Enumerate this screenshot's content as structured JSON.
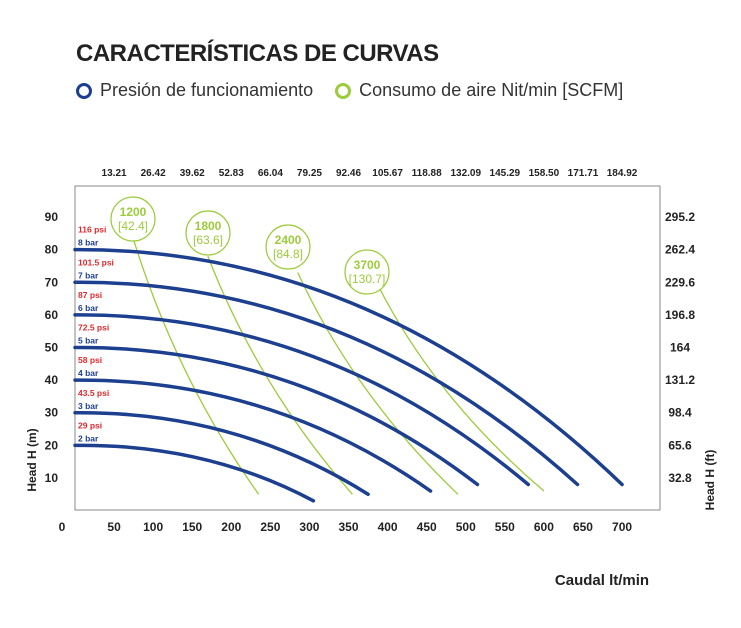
{
  "chart_data": {
    "type": "line",
    "title": "CARACTERÍSTICAS DE CURVAS",
    "legend": [
      {
        "label": "Presión de funcionamiento",
        "color": "#1d3f8f"
      },
      {
        "label": "Consumo de aire Nit/min [SCFM]",
        "color": "#9ccb3b"
      }
    ],
    "xlabel": "Caudal lt/min",
    "ylabel_left": "Head H (m)",
    "ylabel_right": "Head H (ft)",
    "xlim": [
      0,
      750
    ],
    "ylim": [
      0,
      95
    ],
    "x_ticks": [
      0,
      50,
      100,
      150,
      200,
      250,
      300,
      350,
      400,
      450,
      500,
      550,
      600,
      650,
      700
    ],
    "x_top_ticks": [
      "13.21",
      "26.42",
      "39.62",
      "52.83",
      "66.04",
      "79.25",
      "92.46",
      "105.67",
      "118.88",
      "132.09",
      "145.29",
      "158.50",
      "171.71",
      "184.92"
    ],
    "y_ticks": [
      10,
      20,
      30,
      40,
      50,
      60,
      70,
      80,
      90
    ],
    "y_right_ticks": [
      "32.8",
      "65.6",
      "98.4",
      "131.2",
      "164",
      "196.8",
      "229.6",
      "262.4",
      "295.2"
    ],
    "pressure_series": [
      {
        "bar": "8 bar",
        "psi": "116 psi",
        "start": 80,
        "end_x": 700,
        "end_y": 8
      },
      {
        "bar": "7 bar",
        "psi": "101.5 psi",
        "start": 70,
        "end_x": 643,
        "end_y": 8
      },
      {
        "bar": "6 bar",
        "psi": "87 psi",
        "start": 60,
        "end_x": 580,
        "end_y": 8
      },
      {
        "bar": "5 bar",
        "psi": "72.5 psi",
        "start": 50,
        "end_x": 515,
        "end_y": 8
      },
      {
        "bar": "4 bar",
        "psi": "58 psi",
        "start": 40,
        "end_x": 455,
        "end_y": 6
      },
      {
        "bar": "3 bar",
        "psi": "43.5 psi",
        "start": 30,
        "end_x": 375,
        "end_y": 5
      },
      {
        "bar": "2 bar",
        "psi": "29 psi",
        "start": 20,
        "end_x": 305,
        "end_y": 3
      }
    ],
    "air_series": [
      {
        "label": "1200",
        "scfm": "[42.4]",
        "points": [
          [
            75,
            83
          ],
          [
            235,
            5
          ]
        ]
      },
      {
        "label": "1800",
        "scfm": "[63.6]",
        "points": [
          [
            170,
            78
          ],
          [
            355,
            5
          ]
        ]
      },
      {
        "label": "2400",
        "scfm": "[84.8]",
        "points": [
          [
            285,
            73
          ],
          [
            490,
            5
          ]
        ]
      },
      {
        "label": "3700",
        "scfm": "[130.7]",
        "points": [
          [
            390,
            68
          ],
          [
            600,
            6
          ]
        ]
      }
    ]
  }
}
